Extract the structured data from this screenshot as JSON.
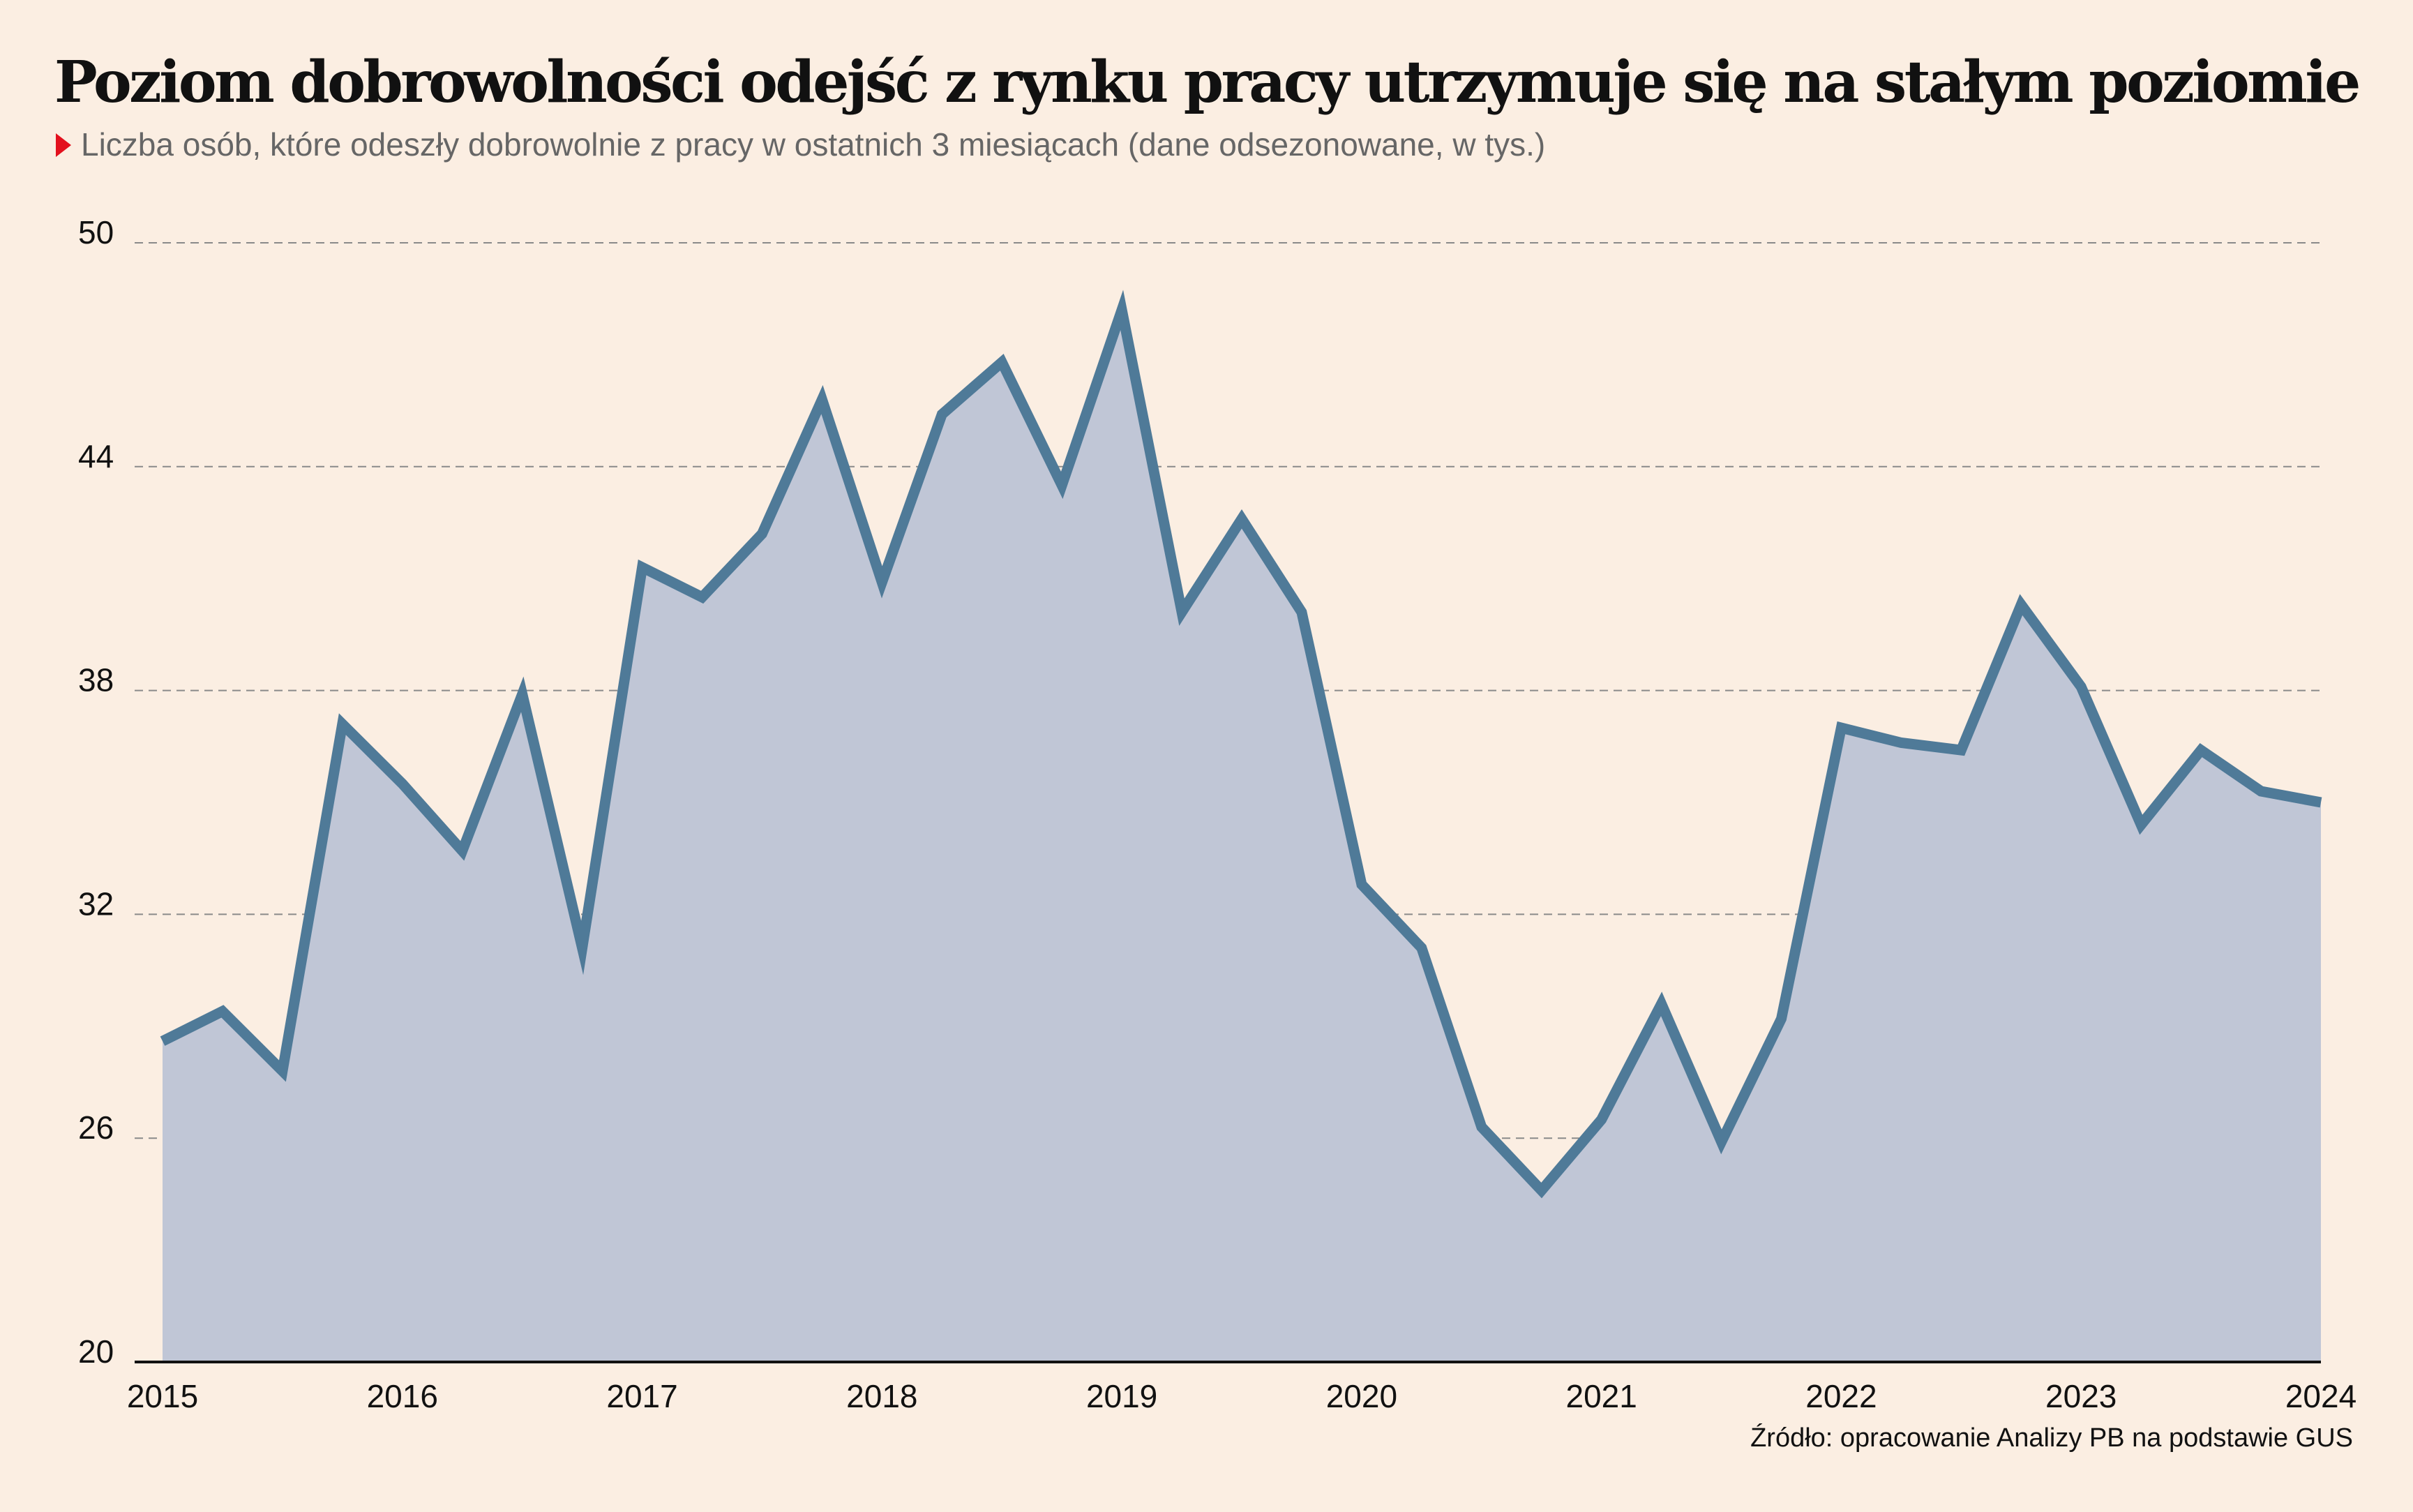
{
  "title": "Poziom dobrowolności odejść z rynku pracy utrzymuje się na stałym poziomie",
  "subtitle": "Liczba osób, które odeszły dobrowolnie z pracy w ostatnich 3 miesiącach (dane odsezonowane, w tys.)",
  "source": "Źródło: opracowanie Analizy PB na podstawie GUS",
  "colors": {
    "background": "#fbeee2",
    "line": "#4f7a98",
    "area": "#c0c6d6",
    "grid": "#8a8a8a",
    "marker": "#e3101d"
  },
  "chart_data": {
    "type": "area",
    "title": "Poziom dobrowolności odejść z rynku pracy utrzymuje się na stałym poziomie",
    "ylabel": "",
    "xlabel": "",
    "ylim": [
      20,
      50
    ],
    "xlim": [
      2015,
      2024
    ],
    "y_ticks": [
      "20",
      "26",
      "32",
      "38",
      "44",
      "50"
    ],
    "x_ticks": [
      "2015",
      "2016",
      "2017",
      "2018",
      "2019",
      "2020",
      "2021",
      "2022",
      "2023",
      "2024"
    ],
    "grid": "horizontal dashed",
    "series": [
      {
        "x": [
          "2015 Q1",
          "2015 Q2",
          "2015 Q3",
          "2015 Q4",
          "2016 Q1",
          "2016 Q2",
          "2016 Q3",
          "2016 Q4",
          "2017 Q1",
          "2017 Q2",
          "2017 Q3",
          "2017 Q4",
          "2018 Q1",
          "2018 Q2",
          "2018 Q3",
          "2018 Q4",
          "2019 Q1",
          "2019 Q2",
          "2019 Q3",
          "2019 Q4",
          "2020 Q1",
          "2020 Q2",
          "2020 Q3",
          "2020 Q4",
          "2021 Q1",
          "2021 Q2",
          "2021 Q3",
          "2021 Q4",
          "2022 Q1",
          "2022 Q2",
          "2022 Q3",
          "2022 Q4",
          "2023 Q1",
          "2023 Q2",
          "2023 Q3",
          "2023 Q4",
          "2024 Q1"
        ],
        "values": [
          28.6,
          29.4,
          27.8,
          37.1,
          35.5,
          33.7,
          37.9,
          31.1,
          41.3,
          40.5,
          42.2,
          45.8,
          40.9,
          45.4,
          46.8,
          43.5,
          48.2,
          40.1,
          42.6,
          40.1,
          32.8,
          31.1,
          26.3,
          24.6,
          26.5,
          29.6,
          25.9,
          29.2,
          37.0,
          36.6,
          36.4,
          40.3,
          38.1,
          34.4,
          36.4,
          35.3,
          35.0
        ]
      }
    ]
  }
}
